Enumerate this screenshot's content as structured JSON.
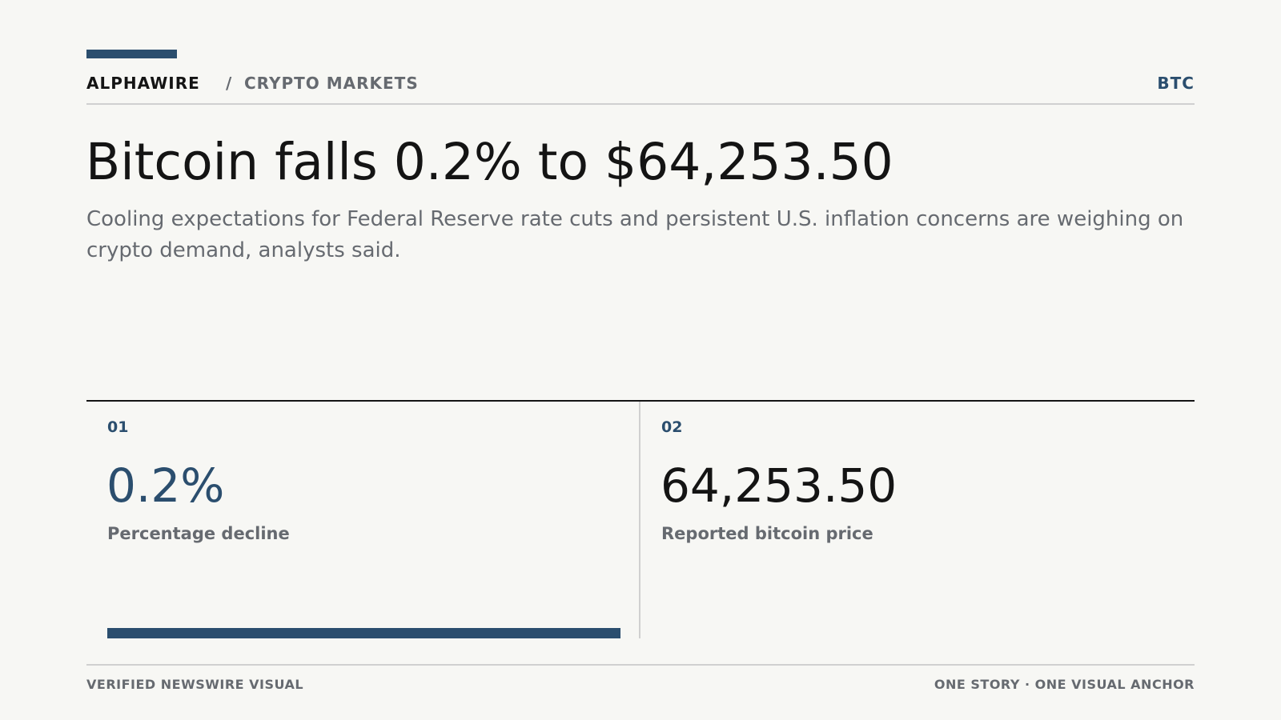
{
  "header": {
    "brand": "ALPHAWIRE",
    "separator": "/",
    "section": "CRYPTO MARKETS",
    "ticker": "BTC"
  },
  "article": {
    "headline": "Bitcoin falls 0.2% to $64,253.50",
    "dek": "Cooling expectations for Federal Reserve rate cuts and persistent U.S. inflation concerns are weighing on crypto demand, analysts said."
  },
  "stats": [
    {
      "index": "01",
      "value": "0.2%",
      "label": "Percentage decline"
    },
    {
      "index": "02",
      "value": "64,253.50",
      "label": "Reported bitcoin price"
    }
  ],
  "footer": {
    "left": "VERIFIED NEWSWIRE VISUAL",
    "right": "ONE STORY · ONE VISUAL ANCHOR"
  },
  "colors": {
    "accent": "#2b4e6e",
    "background": "#f7f7f4",
    "text": "#141414",
    "muted": "#666a70",
    "rule": "#d0d0d0"
  }
}
